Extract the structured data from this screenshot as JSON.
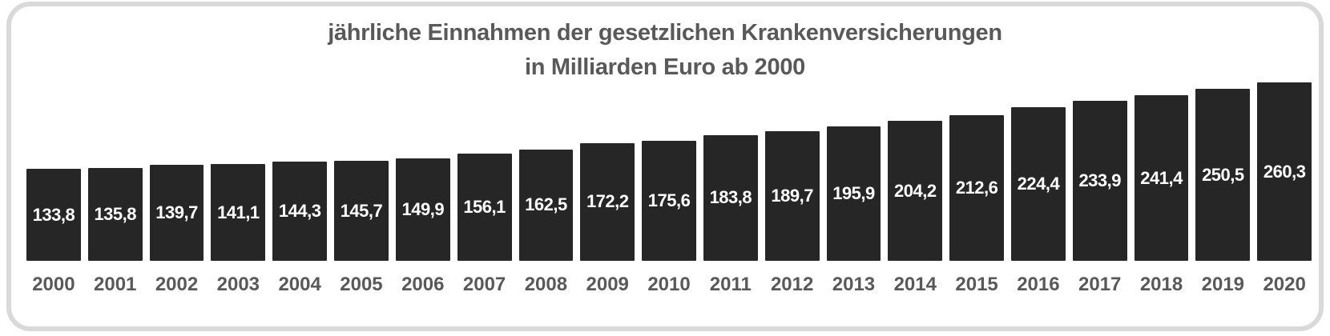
{
  "chart_data": {
    "type": "bar",
    "title": "jährliche Einnahmen der gesetzlichen Krankenversicherungen in Milliarden Euro ab 2000",
    "title_line1": "jährliche Einnahmen der gesetzlichen Krankenversicherungen",
    "title_line2": "in Milliarden Euro ab 2000",
    "xlabel": "",
    "ylabel": "Milliarden Euro",
    "categories": [
      "2000",
      "2001",
      "2002",
      "2003",
      "2004",
      "2005",
      "2006",
      "2007",
      "2008",
      "2009",
      "2010",
      "2011",
      "2012",
      "2013",
      "2014",
      "2015",
      "2016",
      "2017",
      "2018",
      "2019",
      "2020"
    ],
    "values": [
      133.8,
      135.8,
      139.7,
      141.1,
      144.3,
      145.7,
      149.9,
      156.1,
      162.5,
      172.2,
      175.6,
      183.8,
      189.7,
      195.9,
      204.2,
      212.6,
      224.4,
      233.9,
      241.4,
      250.5,
      260.3
    ],
    "value_labels": [
      "133,8",
      "135,8",
      "139,7",
      "141,1",
      "144,3",
      "145,7",
      "149,9",
      "156,1",
      "162,5",
      "172,2",
      "175,6",
      "183,8",
      "189,7",
      "195,9",
      "204,2",
      "212,6",
      "224,4",
      "233,9",
      "241,4",
      "250,5",
      "260,3"
    ],
    "ylim": [
      0,
      260.3
    ],
    "grid": false,
    "legend": "none",
    "value_labels_position": "inside-center",
    "decimal_separator": ",",
    "colors": {
      "bar_fill": "#262626",
      "value_label": "#ffffff",
      "axis_tick_label": "#595959",
      "title": "#595959",
      "card_border": "#d9d9d9",
      "background": "#ffffff"
    }
  }
}
